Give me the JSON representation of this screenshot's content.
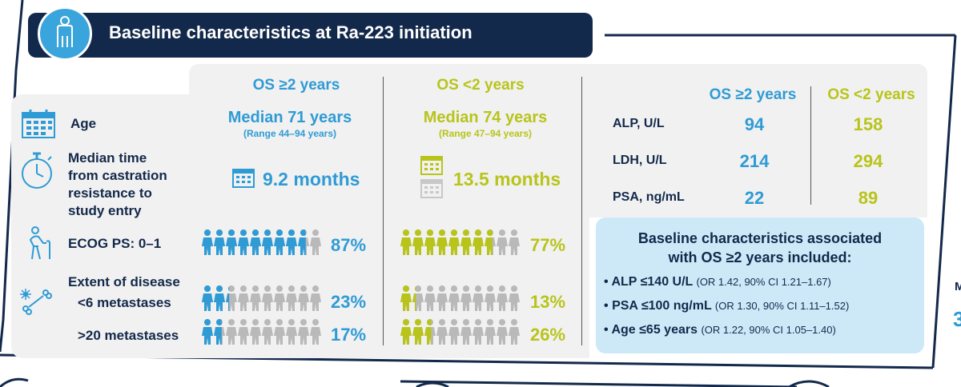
{
  "header": {
    "title": "Baseline characteristics at Ra-223 initiation"
  },
  "columns": {
    "os_ge2": "OS ≥2 years",
    "os_lt2": "OS <2 years"
  },
  "rows": {
    "age": {
      "label": "Age",
      "ge2_main": "Median 71 years",
      "ge2_range": "(Range 44–94 years)",
      "lt2_main": "Median 74 years",
      "lt2_range": "(Range 47–94 years)"
    },
    "time": {
      "label_lines": [
        "Median time",
        "from castration",
        "resistance to",
        "study entry"
      ],
      "ge2": "9.2 months",
      "lt2": "13.5 months"
    },
    "ecog": {
      "label": "ECOG PS: 0–1",
      "ge2": "87%",
      "lt2": "77%",
      "ge2_fraction": 0.87,
      "lt2_fraction": 0.77
    },
    "extent": {
      "label": "Extent of disease"
    },
    "lt6": {
      "label": "<6 metastases",
      "ge2": "23%",
      "lt2": "13%",
      "ge2_fraction": 0.23,
      "lt2_fraction": 0.13
    },
    "gt20": {
      "label": ">20 metastases",
      "ge2": "17%",
      "lt2": "26%",
      "ge2_fraction": 0.17,
      "lt2_fraction": 0.26
    }
  },
  "labs": {
    "header_ge2": "OS ≥2 years",
    "header_lt2": "OS <2 years",
    "rows": [
      {
        "label": "ALP, U/L",
        "ge2": "94",
        "lt2": "158"
      },
      {
        "label": "LDH, U/L",
        "ge2": "214",
        "lt2": "294"
      },
      {
        "label": "PSA, ng/mL",
        "ge2": "22",
        "lt2": "89"
      }
    ]
  },
  "assoc": {
    "title_line1": "Baseline characteristics associated",
    "title_line2": "with OS ≥2 years included:",
    "items": [
      {
        "bullet": "•",
        "main": "ALP ≤140 U/L",
        "stat": "(OR 1.42, 90% CI 1.21–1.67)"
      },
      {
        "bullet": "•",
        "main": "PSA ≤100 ng/mL",
        "stat": "(OR 1.30, 90% CI 1.11–1.52)"
      },
      {
        "bullet": "•",
        "main": "Age ≤65 years",
        "stat": "(OR 1.22, 90% CI 1.05–1.40)"
      }
    ]
  },
  "edge": {
    "letter_m": "M",
    "digit": "3"
  },
  "colors": {
    "navy": "#13294b",
    "blue": "#2f9bd5",
    "lime": "#b8c41a",
    "grey": "#b9b9b9",
    "panel": "#f1f1f1",
    "light_blue": "#cde9f8"
  },
  "icons": [
    "person-icon",
    "calendar-icon",
    "stopwatch-icon",
    "walking-cane-icon",
    "bone-icon",
    "people-pictogram-icon"
  ]
}
